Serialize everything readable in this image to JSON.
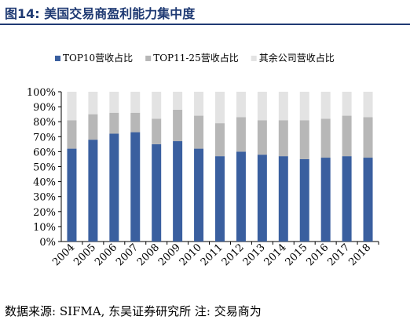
{
  "figure_title": "图14: 美国交易商盈利能力集中度",
  "source_note": "数据来源: SIFMA, 东吴证券研究所 注: 交易商为",
  "chart_data": {
    "type": "bar",
    "stacked": true,
    "categories": [
      "2004",
      "2005",
      "2006",
      "2007",
      "2008",
      "2009",
      "2010",
      "2011",
      "2012",
      "2013",
      "2014",
      "2015",
      "2016",
      "2017",
      "2018"
    ],
    "series": [
      {
        "name": "TOP10营收占比",
        "color": "#3a5f9f",
        "values": [
          62,
          68,
          72,
          73,
          65,
          67,
          62,
          57,
          60,
          58,
          57,
          55,
          56,
          57,
          56
        ]
      },
      {
        "name": "TOP11-25营收占比",
        "color": "#b7b7b7",
        "values": [
          19,
          17,
          14,
          13,
          17,
          21,
          22,
          22,
          23,
          23,
          24,
          26,
          26,
          27,
          27
        ]
      },
      {
        "name": "其余公司营收占比",
        "color": "#e3e3e3",
        "values": [
          19,
          15,
          14,
          14,
          18,
          12,
          16,
          21,
          17,
          19,
          19,
          19,
          18,
          16,
          17
        ]
      }
    ],
    "yticks": [
      "0%",
      "10%",
      "20%",
      "30%",
      "40%",
      "50%",
      "60%",
      "70%",
      "80%",
      "90%",
      "100%"
    ],
    "ylim": [
      0,
      100
    ],
    "legend_position": "top",
    "grid": false
  }
}
